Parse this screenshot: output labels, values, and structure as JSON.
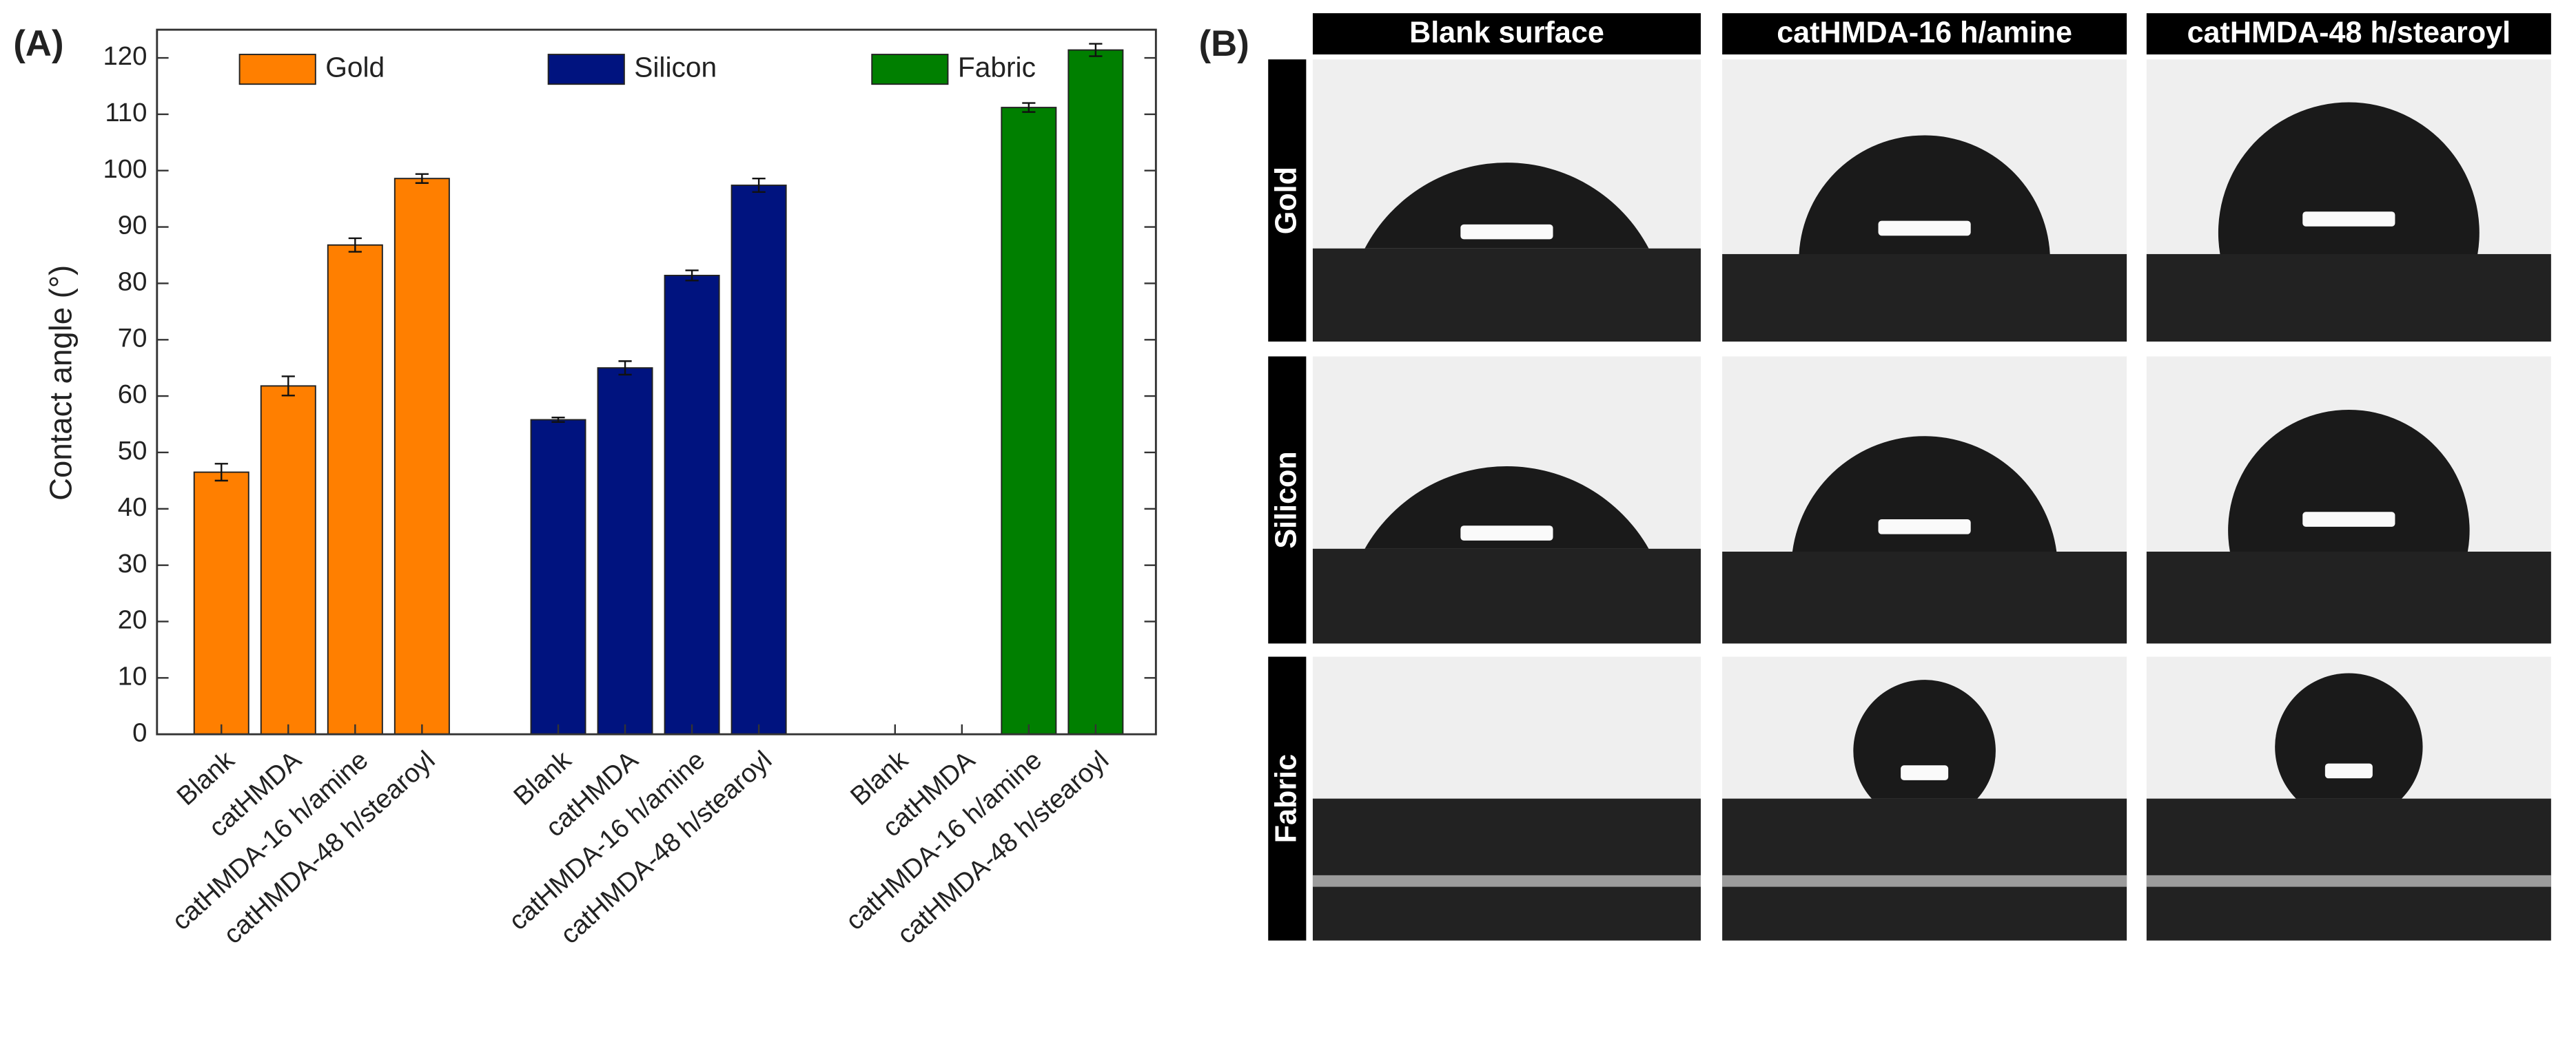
{
  "panel_a_label": "(A)",
  "chart_data": {
    "type": "bar",
    "y_label": "Contact angle (°)",
    "categories": [
      "Blank",
      "catHMDA",
      "catHMDA-16 h/amine",
      "catHMDA-48 h/stearoyl",
      "Blank",
      "catHMDA",
      "catHMDA-16 h/amine",
      "catHMDA-48 h/stearoyl",
      "Blank",
      "catHMDA",
      "catHMDA-16 h/amine",
      "catHMDA-48 h/stearoyl"
    ],
    "series": [
      {
        "name": "Gold",
        "color": "#ff7f00",
        "values": [
          46.5,
          61.8,
          86.8,
          98.6,
          null,
          null,
          null,
          null,
          null,
          null,
          null,
          null
        ],
        "errors": [
          1.5,
          1.7,
          1.2,
          0.8,
          null,
          null,
          null,
          null,
          null,
          null,
          null,
          null
        ]
      },
      {
        "name": "Silicon",
        "color": "#00137f",
        "values": [
          null,
          null,
          null,
          null,
          55.8,
          65.0,
          81.4,
          97.4,
          null,
          null,
          null,
          null
        ],
        "errors": [
          null,
          null,
          null,
          null,
          0.4,
          1.2,
          0.9,
          1.2,
          null,
          null,
          null,
          null
        ]
      },
      {
        "name": "Fabric",
        "color": "#007f00",
        "values": [
          null,
          null,
          null,
          null,
          null,
          null,
          null,
          null,
          null,
          null,
          111.2,
          121.4
        ],
        "errors": [
          null,
          null,
          null,
          null,
          null,
          null,
          null,
          null,
          null,
          null,
          0.8,
          1.1
        ]
      }
    ],
    "ylim": [
      0,
      125
    ],
    "yticks": [
      0,
      10,
      20,
      30,
      40,
      50,
      60,
      70,
      80,
      90,
      100,
      110,
      120
    ],
    "legend": "top"
  },
  "panel_b": {
    "label": "(B)",
    "columns": [
      "Blank surface",
      "catHMDA-16 h/amine",
      "catHMDA-48 h/stearoyl"
    ],
    "rows": [
      "Gold",
      "Silicon",
      "Fabric"
    ]
  }
}
